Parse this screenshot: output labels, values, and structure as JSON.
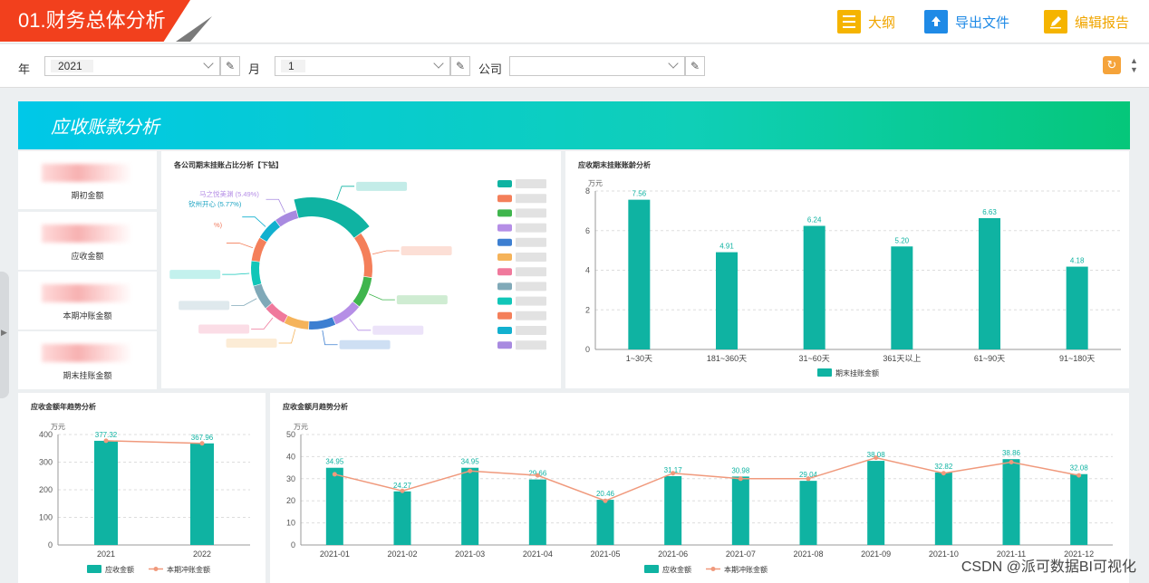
{
  "header": {
    "title": "01.财务总体分析",
    "buttons": [
      {
        "label": "大纲",
        "icon": "outline-icon"
      },
      {
        "label": "导出文件",
        "icon": "export-icon"
      },
      {
        "label": "编辑报告",
        "icon": "edit-icon"
      }
    ]
  },
  "filters": {
    "year_label": "年",
    "year_value": "2021",
    "month_label": "月",
    "month_value": "1",
    "company_label": "公司",
    "company_value": ""
  },
  "banner": {
    "title": "应收账款分析"
  },
  "kpis": [
    {
      "label": "期初金额"
    },
    {
      "label": "应收金额"
    },
    {
      "label": "本期冲账金额"
    },
    {
      "label": "期末挂账金额"
    }
  ],
  "colors": {
    "primary": "#0fb3a2",
    "line": "#f0997c",
    "title_red": "#f2401d",
    "gold": "#f5b400",
    "blue": "#1f8ae6"
  },
  "watermark": "CSDN @派可数据BI可视化",
  "chart_data": [
    {
      "type": "pie",
      "title": "各公司期末挂账占比分析【下钻】",
      "labels_visible": [
        {
          "text": "马之悦美渊 (5.49%)",
          "color": "#b58ee6"
        },
        {
          "text": "钦州开心 (5.77%)",
          "color": "#1aa3c2"
        },
        {
          "text": "%)",
          "color": "#f07a5e"
        }
      ],
      "slice_colors": [
        "#0fb3a2",
        "#f47f5a",
        "#3fb54d",
        "#b58ee6",
        "#3d7fd1",
        "#f5b35a",
        "#f0799c",
        "#80a9b8",
        "#11c6b8",
        "#f47f5a",
        "#12b0cf",
        "#a88ae0"
      ],
      "slice_fractions": [
        0.17,
        0.11,
        0.075,
        0.07,
        0.065,
        0.06,
        0.055,
        0.06,
        0.06,
        0.058,
        0.055,
        0.055
      ]
    },
    {
      "type": "bar",
      "title": "应收期末挂账账龄分析",
      "ylabel": "万元",
      "categories": [
        "1~30天",
        "181~360天",
        "31~60天",
        "361天以上",
        "61~90天",
        "91~180天"
      ],
      "values": [
        7.56,
        4.91,
        6.24,
        5.2,
        6.63,
        4.18
      ],
      "value_labels": [
        "7.56",
        "4.91",
        "6.24",
        "5.20",
        "6.63",
        "4.18"
      ],
      "yticks": [
        "0",
        "2",
        "4",
        "6",
        "8"
      ],
      "ylim": [
        0,
        8
      ],
      "legend": [
        "期末挂账金额"
      ]
    },
    {
      "type": "bar",
      "title": "应收金额年趋势分析",
      "ylabel": "万元",
      "categories": [
        "2021",
        "2022"
      ],
      "series": [
        {
          "name": "应收金额",
          "values": [
            377.32,
            367.96
          ]
        },
        {
          "name": "本期冲账金额",
          "values": [
            377.32,
            367.96
          ]
        }
      ],
      "value_labels": [
        "377.32",
        "367.96"
      ],
      "yticks": [
        "0",
        "100",
        "200",
        "300",
        "400"
      ],
      "ylim": [
        0,
        400
      ],
      "legend": [
        "应收金额",
        "本期冲账金额"
      ]
    },
    {
      "type": "bar",
      "title": "应收金额月趋势分析",
      "ylabel": "万元",
      "categories": [
        "2021-01",
        "2021-02",
        "2021-03",
        "2021-04",
        "2021-05",
        "2021-06",
        "2021-07",
        "2021-08",
        "2021-09",
        "2021-10",
        "2021-11",
        "2021-12"
      ],
      "series": [
        {
          "name": "应收金额",
          "values": [
            34.95,
            24.27,
            34.95,
            29.66,
            20.46,
            31.17,
            30.98,
            29.04,
            38.08,
            32.82,
            38.86,
            32.08
          ]
        },
        {
          "name": "本期冲账金额",
          "values": [
            32.0,
            24.5,
            33.5,
            31.5,
            20.0,
            32.5,
            30.0,
            30.0,
            39.5,
            32.5,
            37.5,
            31.5
          ]
        }
      ],
      "value_labels": [
        "34.95",
        "24.27",
        "34.95",
        "29.66",
        "20.46",
        "31.17",
        "30.98",
        "29.04",
        "38.08",
        "32.82",
        "38.86",
        "32.08"
      ],
      "yticks": [
        "0",
        "10",
        "20",
        "30",
        "40",
        "50"
      ],
      "ylim": [
        0,
        50
      ],
      "legend": [
        "应收金额",
        "本期冲账金额"
      ]
    }
  ]
}
